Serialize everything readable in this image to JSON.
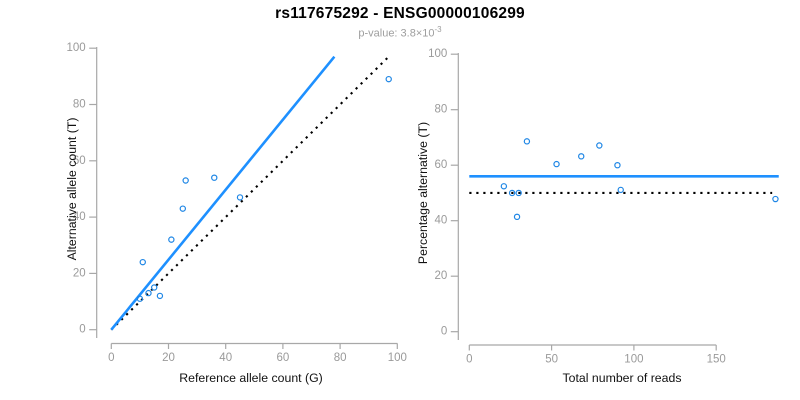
{
  "figure": {
    "title": "rs117675292 - ENSG00000106299",
    "subtitle": {
      "base": "p-value: 3.8×10",
      "exponent": "-3"
    }
  },
  "colors": {
    "fit_line": "#1E90FF",
    "identity_line": "#000000",
    "points": "#1E86E5",
    "axis": "#A8A8A8",
    "tick_label": "#9A9A9A",
    "axis_title": "#111111"
  },
  "chart_data": [
    {
      "type": "scatter",
      "panel": "left",
      "xlabel": "Reference allele count (G)",
      "ylabel": "Alternative allele count (T)",
      "xlim": [
        0,
        100
      ],
      "ylim": [
        0,
        100
      ],
      "xticks": [
        0,
        20,
        40,
        60,
        80,
        100
      ],
      "yticks": [
        0,
        20,
        40,
        60,
        80,
        100
      ],
      "grid": false,
      "legend": "none",
      "points": [
        [
          10,
          11
        ],
        [
          11,
          24
        ],
        [
          13,
          13
        ],
        [
          15,
          15
        ],
        [
          17,
          12
        ],
        [
          21,
          32
        ],
        [
          25,
          43
        ],
        [
          26,
          53
        ],
        [
          36,
          54
        ],
        [
          45,
          47
        ],
        [
          97,
          89
        ]
      ],
      "lines": [
        {
          "name": "fit-line",
          "style": "solid",
          "color_key": "fit_line",
          "from": [
            0,
            0
          ],
          "to": [
            78,
            97
          ]
        },
        {
          "name": "identity-line",
          "style": "dotted",
          "color_key": "identity_line",
          "from": [
            0,
            0
          ],
          "to": [
            97,
            97
          ]
        }
      ]
    },
    {
      "type": "scatter",
      "panel": "right",
      "xlabel": "Total number of reads",
      "ylabel": "Percentage alternative (T)",
      "xlim": [
        0,
        188
      ],
      "ylim": [
        0,
        100
      ],
      "xticks": [
        0,
        50,
        100,
        150
      ],
      "yticks": [
        0,
        20,
        40,
        60,
        80,
        100
      ],
      "grid": false,
      "legend": "none",
      "points": [
        [
          21,
          52.4
        ],
        [
          26,
          50
        ],
        [
          29,
          41.4
        ],
        [
          30,
          50
        ],
        [
          35,
          68.6
        ],
        [
          53,
          60.4
        ],
        [
          68,
          63.2
        ],
        [
          79,
          67.1
        ],
        [
          90,
          60
        ],
        [
          92,
          51.1
        ],
        [
          186,
          47.8
        ]
      ],
      "lines": [
        {
          "name": "fit-line",
          "style": "solid",
          "color_key": "fit_line",
          "from": [
            0,
            56
          ],
          "to": [
            188,
            56
          ]
        },
        {
          "name": "null-line",
          "style": "dotted",
          "color_key": "identity_line",
          "from": [
            0,
            50
          ],
          "to": [
            184,
            50
          ]
        }
      ]
    }
  ]
}
